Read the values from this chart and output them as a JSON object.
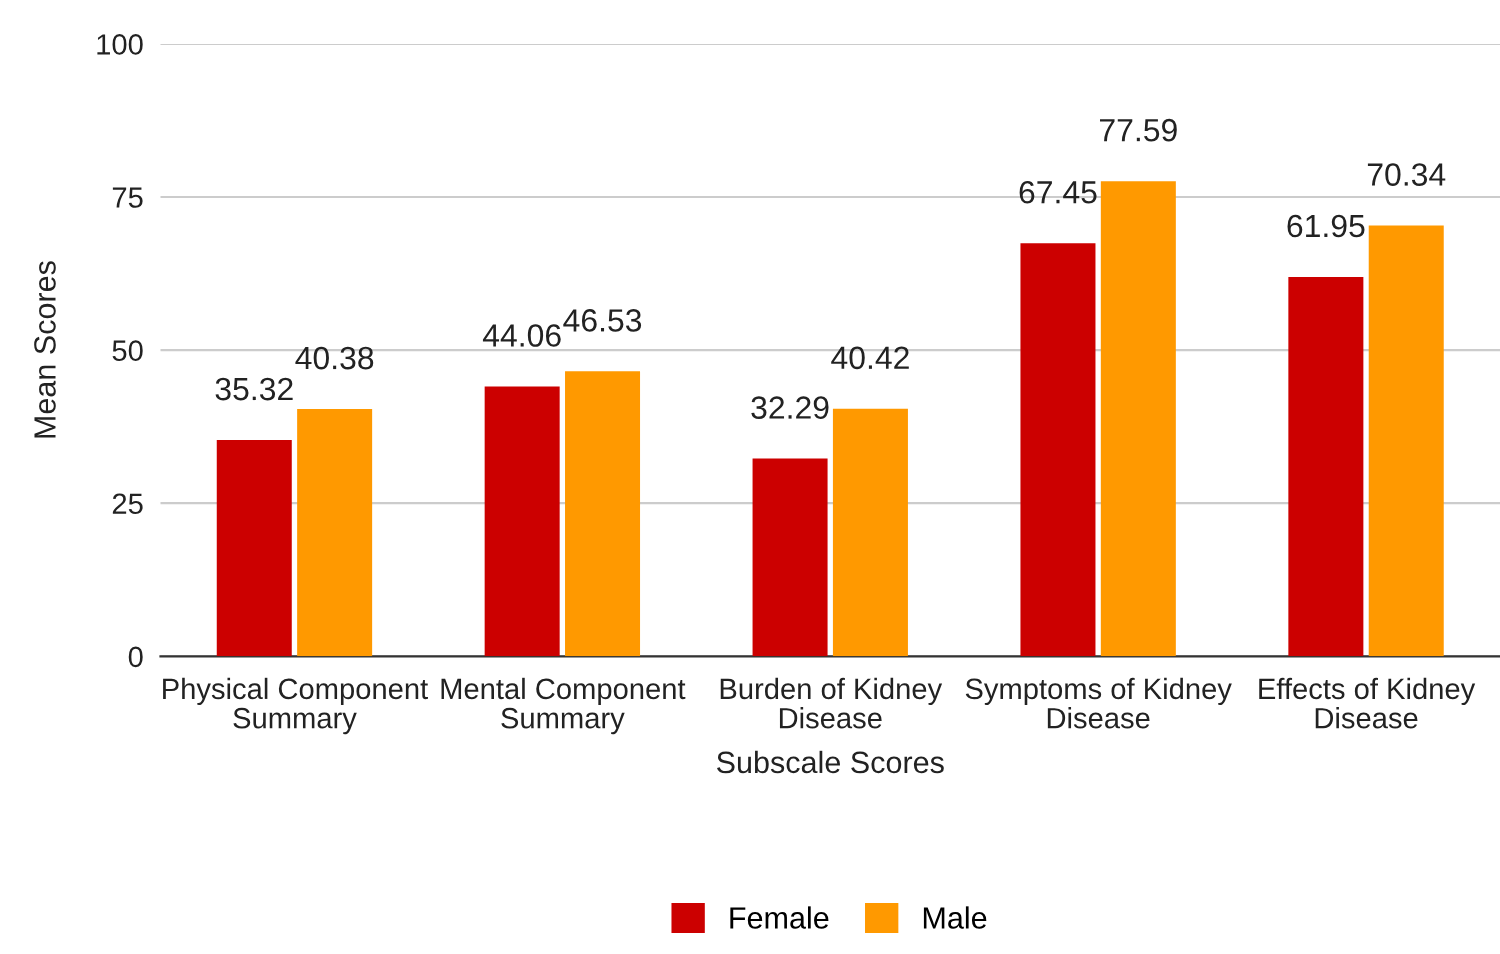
{
  "chart_data": {
    "type": "bar",
    "xlabel": "Subscale Scores",
    "ylabel": "Mean Scores",
    "categories": [
      "Physical Component Summary",
      "Mental Component Summary",
      "Burden of Kidney Disease",
      "Symptoms of Kidney Disease",
      "Effects of Kidney Disease"
    ],
    "series": [
      {
        "name": "Female",
        "color": "#cc0000",
        "values": [
          35.32,
          44.06,
          32.29,
          67.45,
          61.95
        ]
      },
      {
        "name": "Male",
        "color": "#ff9900",
        "values": [
          40.38,
          46.53,
          40.42,
          77.59,
          70.34
        ]
      }
    ],
    "ylim": [
      0,
      100
    ],
    "yticks": [
      0,
      25,
      50,
      75,
      100
    ],
    "grid": "y",
    "legend": "bottom",
    "data_labels": true
  }
}
